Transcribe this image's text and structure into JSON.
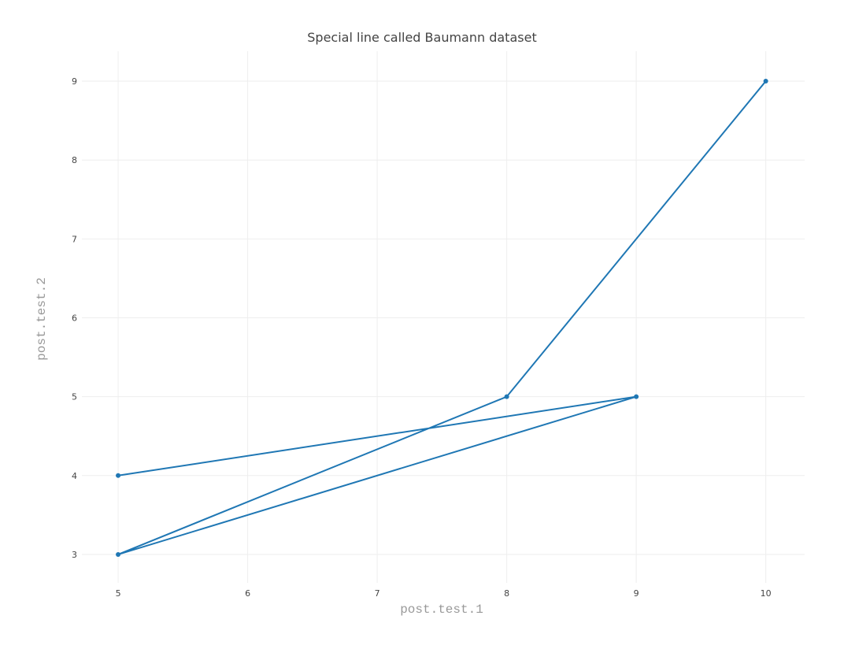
{
  "chart_data": {
    "type": "line",
    "title": "Special line called Baumann dataset",
    "xlabel": "post.test.1",
    "ylabel": "post.test.2",
    "xlim": [
      4.72,
      10.3
    ],
    "ylim": [
      2.64,
      9.38
    ],
    "x_ticks": [
      5,
      6,
      7,
      8,
      9,
      10
    ],
    "y_ticks": [
      3,
      4,
      5,
      6,
      7,
      8,
      9
    ],
    "grid": true,
    "legend": "none",
    "series": [
      {
        "color": "#1f77b4",
        "points": [
          {
            "x": 5,
            "y": 4
          },
          {
            "x": 9,
            "y": 5
          },
          {
            "x": 5,
            "y": 3
          },
          {
            "x": 8,
            "y": 5
          },
          {
            "x": 10,
            "y": 9
          }
        ]
      }
    ]
  }
}
